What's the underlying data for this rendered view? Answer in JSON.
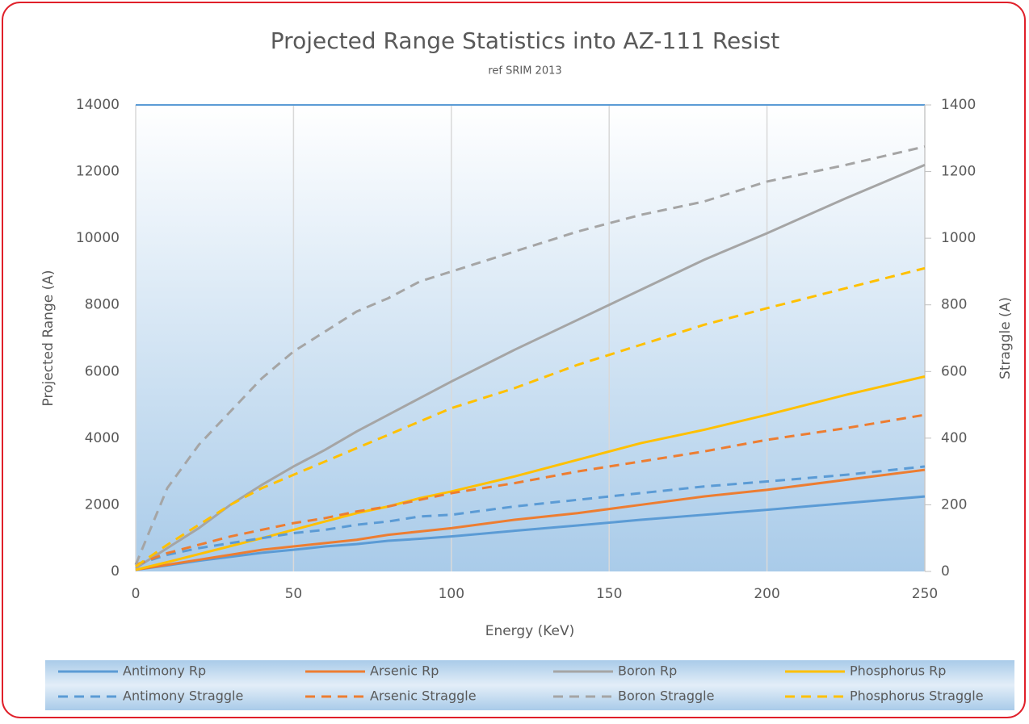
{
  "chart_data": {
    "type": "line",
    "title": "Projected Range Statistics into AZ-111 Resist",
    "subtitle": "ref SRIM 2013",
    "xlabel": "Energy (KeV)",
    "ylabel": "Projected Range (A)",
    "y2label": "Straggle (A)",
    "x": [
      0,
      10,
      20,
      30,
      40,
      50,
      60,
      70,
      80,
      90,
      100,
      120,
      140,
      160,
      180,
      200,
      225,
      250
    ],
    "xlim": [
      0,
      250
    ],
    "xticks": [
      0,
      50,
      100,
      150,
      200,
      250
    ],
    "ylim": [
      0,
      14000
    ],
    "yticks": [
      0,
      2000,
      4000,
      6000,
      8000,
      10000,
      12000,
      14000
    ],
    "y2lim": [
      0,
      1400
    ],
    "y2ticks": [
      0,
      200,
      400,
      600,
      800,
      1000,
      1200,
      1400
    ],
    "grid": true,
    "legend": "bottom",
    "series": [
      {
        "name": "Antimony Rp",
        "color": "#5b9bd5",
        "dashed": false,
        "axis": "y",
        "values": [
          50,
          180,
          320,
          440,
          560,
          650,
          750,
          820,
          920,
          980,
          1050,
          1220,
          1380,
          1550,
          1700,
          1850,
          2050,
          2250
        ]
      },
      {
        "name": "Arsenic Rp",
        "color": "#ed7d31",
        "dashed": false,
        "axis": "y",
        "values": [
          50,
          200,
          350,
          500,
          650,
          750,
          850,
          950,
          1100,
          1200,
          1300,
          1550,
          1750,
          2000,
          2250,
          2450,
          2750,
          3050
        ]
      },
      {
        "name": "Boron Rp",
        "color": "#a5a5a5",
        "dashed": false,
        "axis": "y",
        "values": [
          100,
          700,
          1300,
          2000,
          2600,
          3150,
          3650,
          4200,
          4700,
          5200,
          5700,
          6650,
          7550,
          8450,
          9350,
          10150,
          11200,
          12200
        ]
      },
      {
        "name": "Phosphorus Rp",
        "color": "#ffc000",
        "dashed": false,
        "axis": "y",
        "values": [
          50,
          280,
          520,
          760,
          1000,
          1250,
          1500,
          1750,
          1950,
          2200,
          2400,
          2850,
          3350,
          3850,
          4250,
          4700,
          5300,
          5850
        ]
      },
      {
        "name": "Antimony Straggle",
        "color": "#5b9bd5",
        "dashed": true,
        "axis": "y2",
        "values": [
          20,
          50,
          70,
          85,
          100,
          115,
          125,
          140,
          150,
          165,
          170,
          195,
          215,
          235,
          255,
          270,
          290,
          315
        ]
      },
      {
        "name": "Arsenic Straggle",
        "color": "#ed7d31",
        "dashed": true,
        "axis": "y2",
        "values": [
          20,
          55,
          80,
          105,
          125,
          145,
          160,
          180,
          195,
          215,
          235,
          265,
          300,
          330,
          360,
          395,
          430,
          470
        ]
      },
      {
        "name": "Boron Straggle",
        "color": "#a5a5a5",
        "dashed": true,
        "axis": "y2",
        "values": [
          20,
          250,
          380,
          480,
          580,
          660,
          720,
          780,
          820,
          870,
          900,
          960,
          1020,
          1070,
          1110,
          1170,
          1220,
          1275
        ]
      },
      {
        "name": "Phosphorus Straggle",
        "color": "#ffc000",
        "dashed": true,
        "axis": "y2",
        "values": [
          15,
          80,
          140,
          200,
          250,
          290,
          330,
          370,
          410,
          450,
          490,
          550,
          620,
          680,
          740,
          790,
          850,
          910
        ]
      }
    ]
  }
}
